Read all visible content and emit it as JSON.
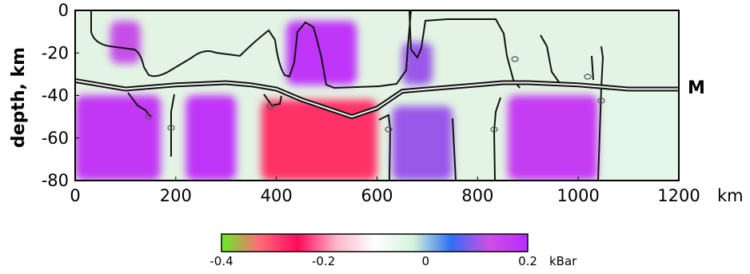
{
  "chart_data": {
    "type": "heatmap",
    "ylabel": "depth, km",
    "xunit": "km",
    "xlim": [
      0,
      1200
    ],
    "ylim": [
      -80,
      0
    ],
    "xticks": [
      "0",
      "200",
      "400",
      "600",
      "800",
      "1000",
      "1200"
    ],
    "yticks": [
      "0",
      "-20",
      "-40",
      "-60",
      "-80"
    ],
    "moho_label": "M",
    "colorbar": {
      "ticks": [
        "-0.4",
        "-0.2",
        "0",
        "0.2"
      ],
      "unit": "kBar",
      "range": [
        -0.4,
        0.2
      ],
      "colors": [
        "#66ee22",
        "#ff6a7a",
        "#ff0a5c",
        "#ffb6c8",
        "#ffffff",
        "#d6f3dc",
        "#2f6ff2",
        "#d04ee6",
        "#b92bff"
      ]
    },
    "moho_depth": {
      "x": [
        0,
        100,
        200,
        300,
        350,
        400,
        450,
        500,
        550,
        600,
        650,
        700,
        750,
        800,
        850,
        900,
        1000,
        1100,
        1200
      ],
      "depth": [
        -33,
        -37,
        -35,
        -34,
        -35,
        -37,
        -42,
        -46,
        -50,
        -46,
        -38,
        -37,
        -36,
        -35,
        -34,
        -34,
        -35,
        -37,
        -37
      ]
    },
    "regions": [
      {
        "x": [
          70,
          130
        ],
        "depth": [
          -5,
          -25
        ],
        "value": 0.12
      },
      {
        "x": [
          420,
          560
        ],
        "depth": [
          -5,
          -35
        ],
        "value": 0.18
      },
      {
        "x": [
          650,
          710
        ],
        "depth": [
          -15,
          -35
        ],
        "value": 0.1
      },
      {
        "x": [
          0,
          170
        ],
        "depth": [
          -40,
          -80
        ],
        "value": 0.17
      },
      {
        "x": [
          220,
          320
        ],
        "depth": [
          -40,
          -80
        ],
        "value": 0.18
      },
      {
        "x": [
          370,
          600
        ],
        "depth": [
          -42,
          -80
        ],
        "value": -0.28
      },
      {
        "x": [
          630,
          750
        ],
        "depth": [
          -45,
          -80
        ],
        "value": 0.1
      },
      {
        "x": [
          860,
          1040
        ],
        "depth": [
          -40,
          -80
        ],
        "value": 0.16
      },
      {
        "x": [
          1050,
          1200
        ],
        "depth": [
          -35,
          -80
        ],
        "value": -0.05
      }
    ]
  }
}
